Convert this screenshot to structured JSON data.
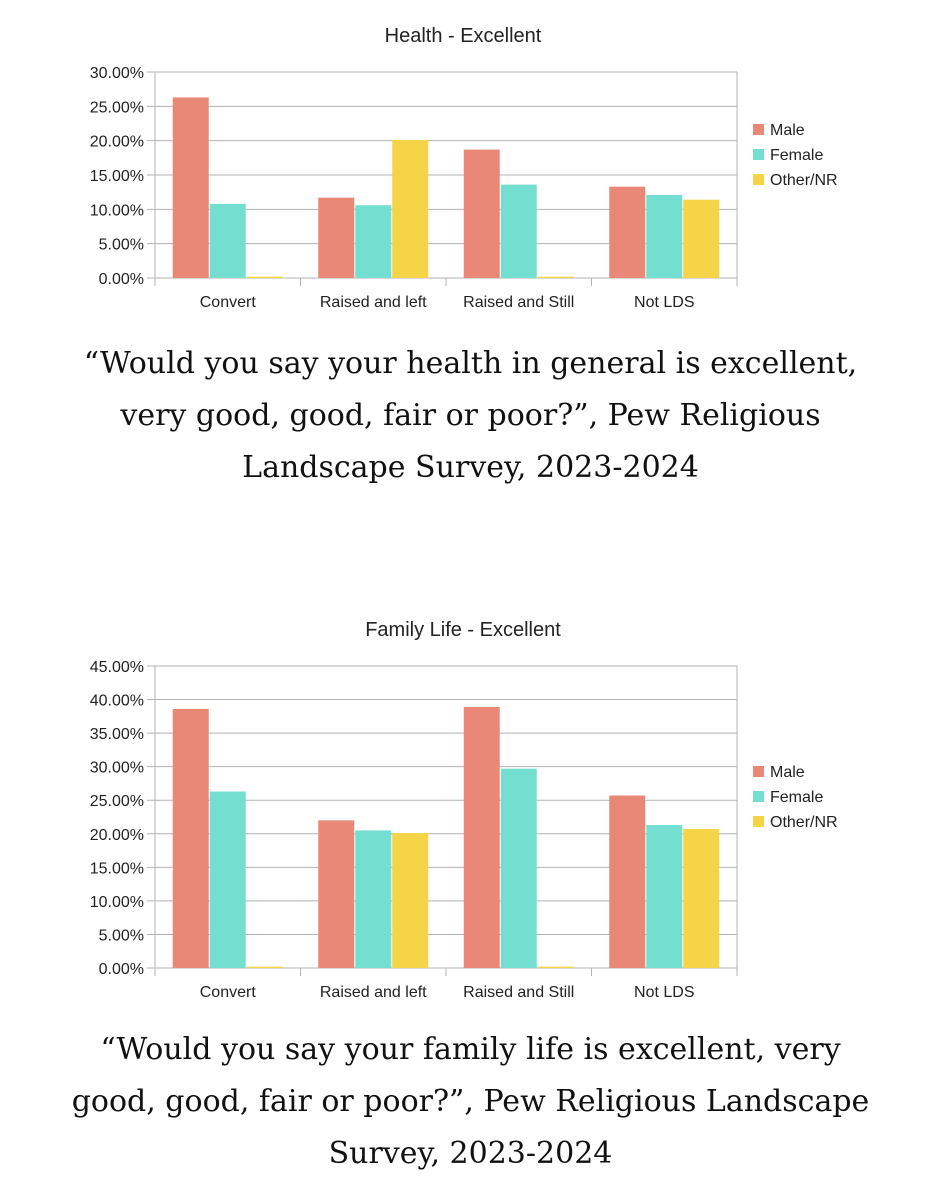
{
  "colors": {
    "male": "#ea8878",
    "female": "#74dfd0",
    "other": "#f5d447",
    "grid": "#b3b3b3",
    "axis": "#b3b3b3"
  },
  "captions": {
    "health": "“Would you say your health in general is excellent, very good, good, fair or poor?”, Pew Religious Landscape Survey, 2023-2024",
    "family": "“Would you say your family life is excellent, very good, good, fair or poor?”, Pew Religious Landscape Survey, 2023-2024"
  },
  "chart_data": [
    {
      "type": "bar",
      "title": "Health - Excellent",
      "xlabel": "",
      "ylabel": "",
      "ylim": [
        0,
        30
      ],
      "yticks": [
        "0.00%",
        "5.00%",
        "10.00%",
        "15.00%",
        "20.00%",
        "25.00%",
        "30.00%"
      ],
      "grid": true,
      "legend_position": "right",
      "categories": [
        "Convert",
        "Raised and left",
        "Raised and Still",
        "Not LDS"
      ],
      "series": [
        {
          "name": "Male",
          "color_key": "male",
          "values": [
            26.3,
            11.7,
            18.7,
            13.3
          ]
        },
        {
          "name": "Female",
          "color_key": "female",
          "values": [
            10.8,
            10.6,
            13.6,
            12.1
          ]
        },
        {
          "name": "Other/NR",
          "color_key": "other",
          "values": [
            0.2,
            20.1,
            0.2,
            11.4
          ]
        }
      ]
    },
    {
      "type": "bar",
      "title": "Family Life - Excellent",
      "xlabel": "",
      "ylabel": "",
      "ylim": [
        0,
        45
      ],
      "yticks": [
        "0.00%",
        "5.00%",
        "10.00%",
        "15.00%",
        "20.00%",
        "25.00%",
        "30.00%",
        "35.00%",
        "40.00%",
        "45.00%"
      ],
      "grid": true,
      "legend_position": "right",
      "categories": [
        "Convert",
        "Raised and left",
        "Raised and Still",
        "Not LDS"
      ],
      "series": [
        {
          "name": "Male",
          "color_key": "male",
          "values": [
            38.6,
            22.0,
            38.9,
            25.7
          ]
        },
        {
          "name": "Female",
          "color_key": "female",
          "values": [
            26.3,
            20.5,
            29.7,
            21.3
          ]
        },
        {
          "name": "Other/NR",
          "color_key": "other",
          "values": [
            0.2,
            20.1,
            0.2,
            20.7
          ]
        }
      ]
    }
  ]
}
